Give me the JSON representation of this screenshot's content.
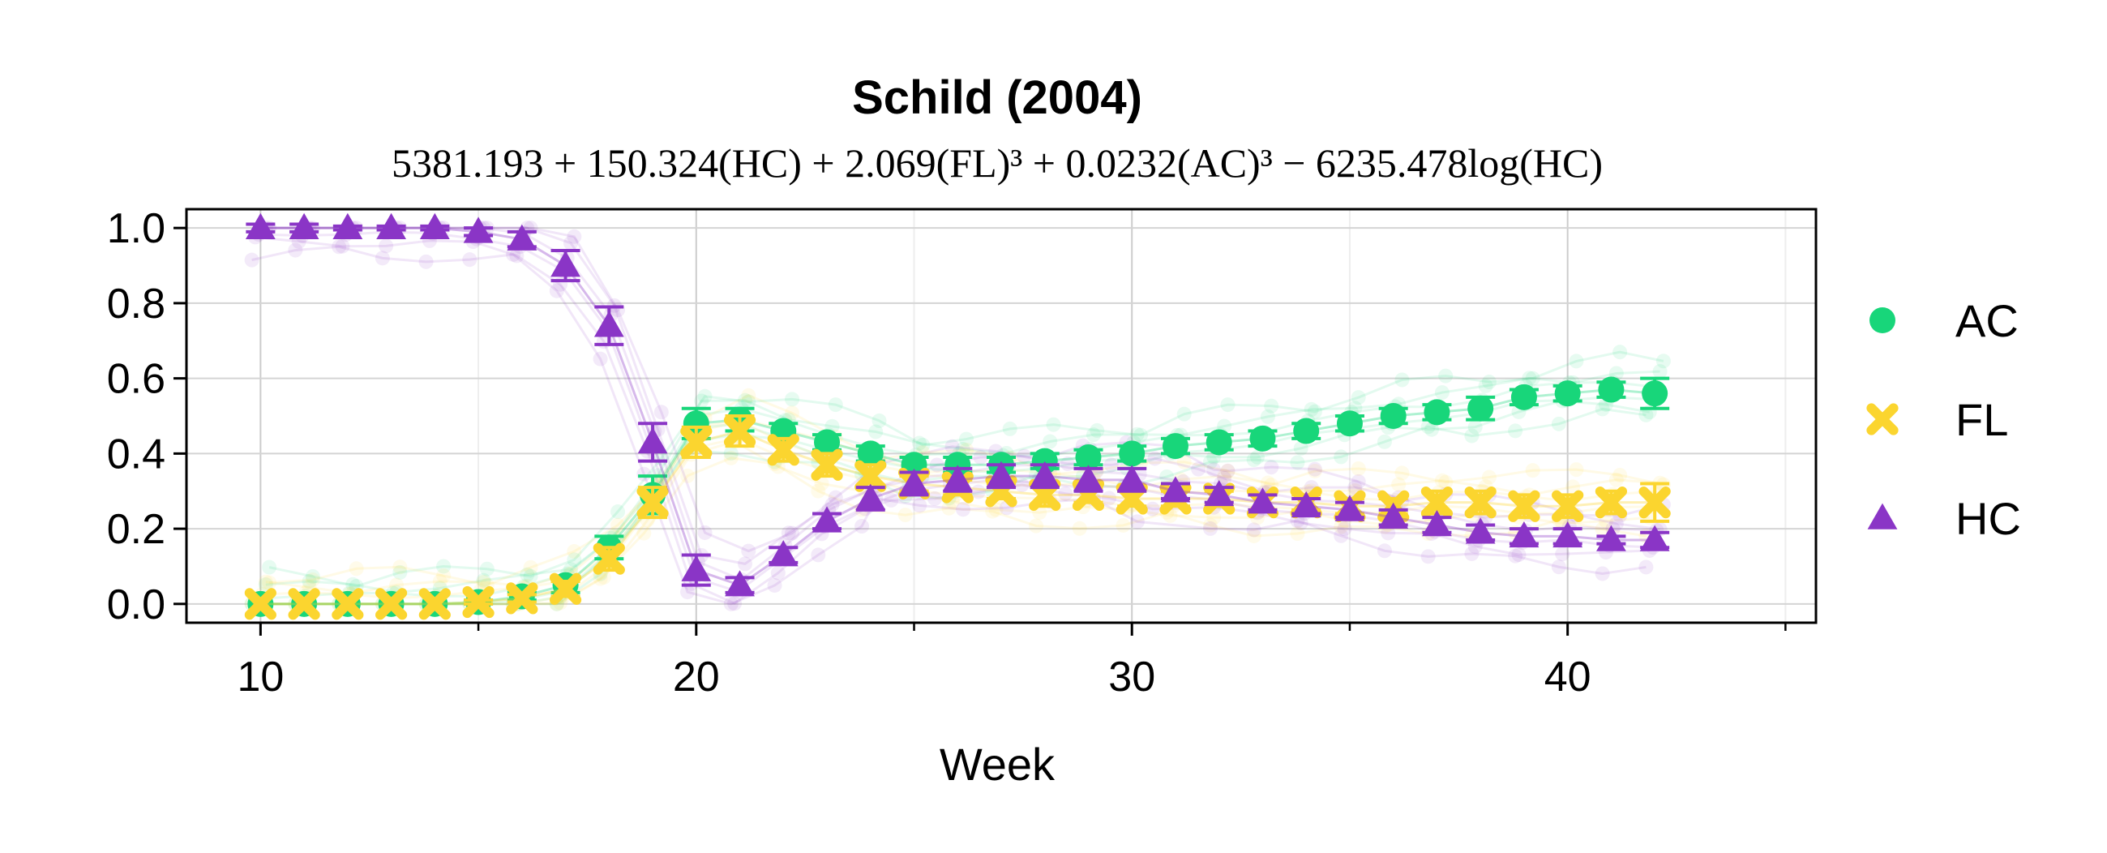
{
  "chart_data": {
    "type": "line",
    "title": "Schild (2004)",
    "subtitle": "5381.193 + 150.324(HC) + 2.069(FL)³ + 0.0232(AC)³ − 6235.478log(HC)",
    "xlabel": "Week",
    "ylabel": "",
    "xlim": [
      8.3,
      45.7
    ],
    "ylim": [
      -0.05,
      1.05
    ],
    "xticks": [
      10,
      20,
      30,
      40
    ],
    "xticks_minor": [
      15,
      25,
      35,
      45
    ],
    "yticks": [
      0.0,
      0.2,
      0.4,
      0.6,
      0.8,
      1.0
    ],
    "ytick_labels": [
      "0.0",
      "0.2",
      "0.4",
      "0.6",
      "0.8",
      "1.0"
    ],
    "grid": true,
    "legend_position": "right-outside",
    "x": [
      10,
      11,
      12,
      13,
      14,
      15,
      16,
      17,
      18,
      19,
      20,
      21,
      22,
      23,
      24,
      25,
      26,
      27,
      28,
      29,
      30,
      31,
      32,
      33,
      34,
      35,
      36,
      37,
      38,
      39,
      40,
      41,
      42
    ],
    "series": [
      {
        "name": "AC",
        "marker": "circle",
        "color": "#18d67a",
        "values": [
          0.0,
          0.0,
          0.0,
          0.0,
          0.0,
          0.005,
          0.02,
          0.05,
          0.15,
          0.29,
          0.48,
          0.49,
          0.46,
          0.43,
          0.4,
          0.37,
          0.37,
          0.37,
          0.38,
          0.39,
          0.4,
          0.42,
          0.43,
          0.44,
          0.46,
          0.48,
          0.5,
          0.51,
          0.52,
          0.55,
          0.56,
          0.57,
          0.56
        ],
        "errors": [
          0.0,
          0.0,
          0.0,
          0.0,
          0.0,
          0.005,
          0.01,
          0.02,
          0.03,
          0.05,
          0.04,
          0.03,
          0.02,
          0.02,
          0.02,
          0.02,
          0.02,
          0.02,
          0.02,
          0.02,
          0.02,
          0.02,
          0.02,
          0.02,
          0.02,
          0.02,
          0.02,
          0.02,
          0.03,
          0.02,
          0.02,
          0.02,
          0.04
        ]
      },
      {
        "name": "FL",
        "marker": "x",
        "color": "#fbd52f",
        "values": [
          0.0,
          0.0,
          0.0,
          0.0,
          0.0,
          0.005,
          0.015,
          0.04,
          0.12,
          0.27,
          0.43,
          0.46,
          0.41,
          0.37,
          0.34,
          0.32,
          0.31,
          0.3,
          0.29,
          0.29,
          0.28,
          0.28,
          0.28,
          0.27,
          0.27,
          0.26,
          0.26,
          0.27,
          0.27,
          0.26,
          0.26,
          0.27,
          0.27
        ],
        "errors": [
          0.0,
          0.0,
          0.0,
          0.0,
          0.0,
          0.005,
          0.01,
          0.02,
          0.03,
          0.04,
          0.04,
          0.04,
          0.03,
          0.03,
          0.03,
          0.02,
          0.02,
          0.02,
          0.03,
          0.02,
          0.02,
          0.02,
          0.02,
          0.02,
          0.02,
          0.02,
          0.02,
          0.03,
          0.03,
          0.03,
          0.03,
          0.03,
          0.05
        ]
      },
      {
        "name": "HC",
        "marker": "triangle",
        "color": "#8a35c6",
        "values": [
          1.0,
          1.0,
          1.0,
          1.0,
          1.0,
          0.99,
          0.97,
          0.9,
          0.74,
          0.43,
          0.09,
          0.05,
          0.13,
          0.22,
          0.28,
          0.32,
          0.33,
          0.34,
          0.34,
          0.33,
          0.33,
          0.3,
          0.29,
          0.27,
          0.26,
          0.25,
          0.23,
          0.21,
          0.19,
          0.18,
          0.18,
          0.17,
          0.17
        ],
        "errors": [
          0.01,
          0.01,
          0.005,
          0.005,
          0.005,
          0.01,
          0.02,
          0.04,
          0.05,
          0.05,
          0.04,
          0.02,
          0.02,
          0.02,
          0.03,
          0.03,
          0.03,
          0.03,
          0.03,
          0.03,
          0.03,
          0.02,
          0.02,
          0.02,
          0.02,
          0.02,
          0.02,
          0.02,
          0.02,
          0.02,
          0.02,
          0.01,
          0.02
        ]
      }
    ]
  }
}
